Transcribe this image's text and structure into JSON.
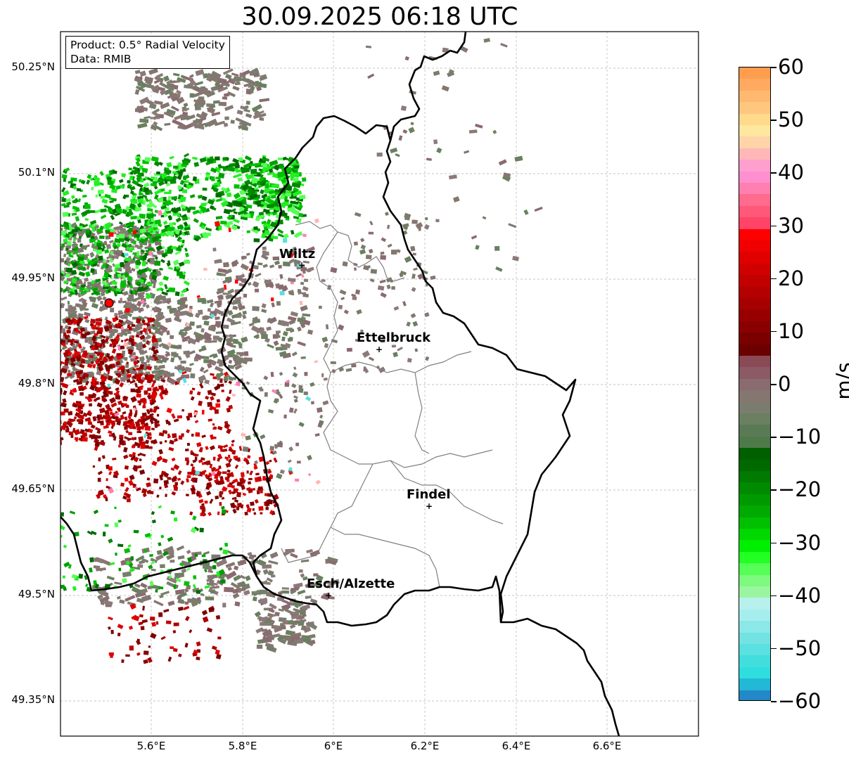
{
  "title": "30.09.2025 06:18 UTC",
  "info_box": {
    "product_line": "Product: 0.5° Radial Velocity",
    "data_line": "Data: RMIB"
  },
  "lat_labels": [
    "50.25°N",
    "50.1°N",
    "49.95°N",
    "49.8°N",
    "49.65°N",
    "49.5°N",
    "49.35°N"
  ],
  "lon_labels": [
    "5.6°E",
    "5.8°E",
    "6°E",
    "6.2°E",
    "6.4°E",
    "6.6°E"
  ],
  "cities": [
    {
      "name": "Wiltz"
    },
    {
      "name": "Ettelbruck"
    },
    {
      "name": "Findel"
    },
    {
      "name": "Esch/Alzette"
    }
  ],
  "colorbar": {
    "unit": "m/s",
    "ticks": [
      "60",
      "50",
      "40",
      "30",
      "20",
      "10",
      "0",
      "−10",
      "−20",
      "−30",
      "−40",
      "−50",
      "−60"
    ],
    "min": -60,
    "max": 60
  },
  "radar_site": {
    "color": "#ff0000"
  }
}
